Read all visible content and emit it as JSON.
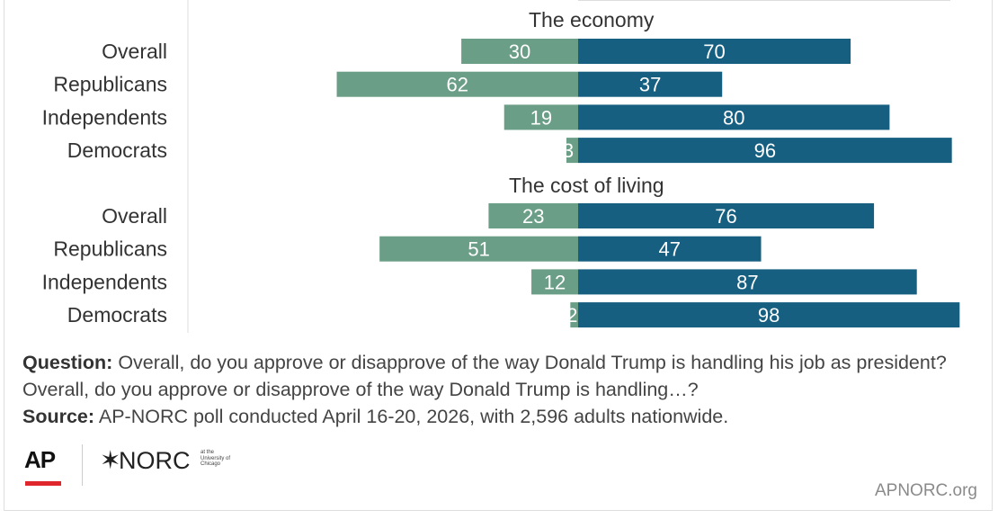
{
  "chart_data": {
    "type": "bar",
    "orientation": "horizontal-diverging",
    "colors": {
      "disapprove": "#6a9e86",
      "approve": "#165f80",
      "label": "#ffffff"
    },
    "panels": [
      {
        "title": "The economy",
        "categories": [
          "Overall",
          "Republicans",
          "Independents",
          "Democrats"
        ],
        "series": [
          {
            "values": [
              30,
              62,
              19,
              3
            ],
            "side": "left"
          },
          {
            "values": [
              70,
              37,
              80,
              96
            ],
            "side": "right"
          }
        ]
      },
      {
        "title": "The cost of living",
        "categories": [
          "Overall",
          "Republicans",
          "Independents",
          "Democrats"
        ],
        "series": [
          {
            "values": [
              23,
              51,
              12,
              2
            ],
            "side": "left"
          },
          {
            "values": [
              76,
              47,
              87,
              98
            ],
            "side": "right"
          }
        ]
      }
    ]
  },
  "notes": {
    "question_label": "Question:",
    "question_text": "Overall, do you approve or disapprove of the way Donald Trump is handling his job as president? Overall, do you approve or disapprove of the way Donald Trump is handling…?",
    "source_label": "Source:",
    "source_text": "AP-NORC poll conducted April 16-20, 2026, with 2,596 adults nationwide."
  },
  "logos": {
    "ap": "AP",
    "norc_star": "✶",
    "norc": "NORC",
    "norc_sub": "at the University of Chicago",
    "ap_underline_color": "#e0262d"
  },
  "footer": {
    "url": "APNORC.org"
  }
}
